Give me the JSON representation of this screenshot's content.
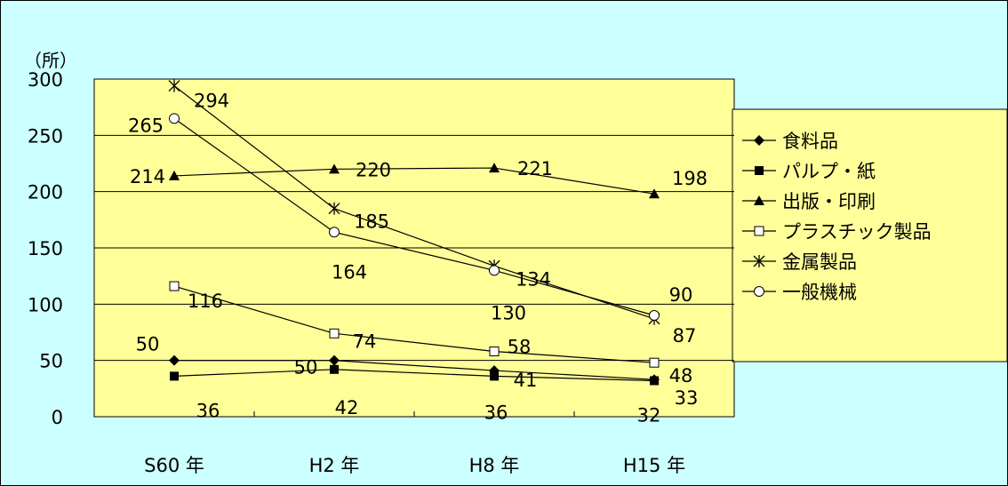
{
  "chart_data": {
    "type": "line",
    "ylabel": "（所）",
    "ylim": [
      0,
      300
    ],
    "yticks": [
      "0",
      "50",
      "100",
      "150",
      "200",
      "250",
      "300"
    ],
    "categories": [
      "S60 年",
      "H2 年",
      "H8 年",
      "H15 年"
    ],
    "grid": "horizontal",
    "legend_position": "right",
    "plot_background": "#ffff99",
    "page_background": "#ccffff",
    "series": [
      {
        "name": "食料品",
        "marker": "diamond-filled",
        "values": [
          50,
          50,
          41,
          33
        ],
        "labels": [
          "50",
          "50",
          "41",
          "33"
        ]
      },
      {
        "name": "パルプ・紙",
        "marker": "square-filled",
        "values": [
          36,
          42,
          36,
          32
        ],
        "labels": [
          "36",
          "42",
          "36",
          "32"
        ]
      },
      {
        "name": "出版・印刷",
        "marker": "triangle-filled",
        "values": [
          214,
          220,
          221,
          198
        ],
        "labels": [
          "214",
          "220",
          "221",
          "198"
        ]
      },
      {
        "name": "プラスチック製品",
        "marker": "square-open",
        "values": [
          116,
          74,
          58,
          48
        ],
        "labels": [
          "116",
          "74",
          "58",
          "48"
        ]
      },
      {
        "name": "金属製品",
        "marker": "asterisk",
        "values": [
          294,
          185,
          134,
          87
        ],
        "labels": [
          "294",
          "185",
          "134",
          "87"
        ]
      },
      {
        "name": "一般機械",
        "marker": "circle-open",
        "values": [
          265,
          164,
          130,
          90
        ],
        "labels": [
          "265",
          "164",
          "130",
          "90"
        ]
      }
    ]
  }
}
